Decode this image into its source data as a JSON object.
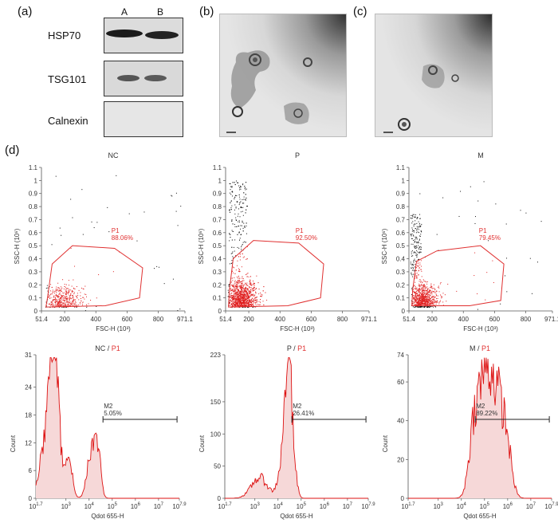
{
  "panel_a": {
    "letter": "(a)",
    "lanes": [
      "A",
      "B"
    ],
    "rows": [
      {
        "label": "HSP70"
      },
      {
        "label": "TSG101"
      },
      {
        "label": "Calnexin"
      }
    ]
  },
  "panel_b": {
    "letter": "(b)"
  },
  "panel_c": {
    "letter": "(c)"
  },
  "panel_d": {
    "letter": "(d)"
  },
  "colors": {
    "gate": "#e03030",
    "events_in": "#e02020",
    "events_out": "#111111",
    "hist_fill": "#f6d8d8",
    "hist_line": "#dd1111"
  },
  "chart_data": [
    {
      "type": "scatter",
      "title": "NC",
      "xlabel": "FSC-H (10³)",
      "ylabel": "SSC-H (10⁶)",
      "xticks": [
        "51.4",
        "200",
        "400",
        "600",
        "800",
        "971.1"
      ],
      "yticks": [
        "0",
        "0.1",
        "0.2",
        "0.3",
        "0.4",
        "0.5",
        "0.6",
        "0.7",
        "0.8",
        "0.9",
        "1",
        "1.1"
      ],
      "xlim": [
        51.4,
        971.1
      ],
      "ylim": [
        0,
        1.1
      ],
      "gate_name": "P1",
      "gate_percent": "88.06%",
      "gate_polygon": [
        [
          90,
          0.1
        ],
        [
          120,
          0.36
        ],
        [
          250,
          0.5
        ],
        [
          520,
          0.48
        ],
        [
          700,
          0.33
        ],
        [
          680,
          0.1
        ],
        [
          460,
          0.04
        ],
        [
          80,
          0.03
        ]
      ],
      "density": "low"
    },
    {
      "type": "scatter",
      "title": "P",
      "xlabel": "FSC-H (10³)",
      "ylabel": "SSC-H (10⁶)",
      "xticks": [
        "51.4",
        "200",
        "400",
        "600",
        "800",
        "971.1"
      ],
      "yticks": [
        "0",
        "0.1",
        "0.2",
        "0.3",
        "0.4",
        "0.5",
        "0.6",
        "0.7",
        "0.8",
        "0.9",
        "1",
        "1.1"
      ],
      "xlim": [
        51.4,
        971.1
      ],
      "ylim": [
        0,
        1.1
      ],
      "gate_name": "P1",
      "gate_percent": "92.50%",
      "gate_polygon": [
        [
          75,
          0.15
        ],
        [
          100,
          0.4
        ],
        [
          230,
          0.54
        ],
        [
          520,
          0.52
        ],
        [
          680,
          0.36
        ],
        [
          660,
          0.1
        ],
        [
          450,
          0.04
        ],
        [
          70,
          0.03
        ]
      ],
      "density": "high"
    },
    {
      "type": "scatter",
      "title": "M",
      "xlabel": "FSC-H (10³)",
      "ylabel": "SSC-H (10⁶)",
      "xticks": [
        "51.4",
        "200",
        "400",
        "600",
        "800",
        "971.1"
      ],
      "yticks": [
        "0",
        "0.1",
        "0.2",
        "0.3",
        "0.4",
        "0.5",
        "0.6",
        "0.7",
        "0.8",
        "0.9",
        "1",
        "1.1"
      ],
      "xlim": [
        51.4,
        971.1
      ],
      "ylim": [
        0,
        1.1
      ],
      "gate_name": "P1",
      "gate_percent": "79.45%",
      "gate_polygon": [
        [
          75,
          0.16
        ],
        [
          100,
          0.38
        ],
        [
          230,
          0.46
        ],
        [
          510,
          0.5
        ],
        [
          660,
          0.36
        ],
        [
          640,
          0.08
        ],
        [
          440,
          0.04
        ],
        [
          70,
          0.04
        ]
      ],
      "density": "medium"
    },
    {
      "type": "area",
      "title_main": "NC",
      "title_gate": "P1",
      "xlabel": "Qdot 655-H",
      "ylabel": "Count",
      "xticks": [
        "10^1.7",
        "10^3",
        "10^4",
        "10^5",
        "10^6",
        "10^7",
        "10^7.9"
      ],
      "yticks": [
        "0",
        "6",
        "12",
        "18",
        "24",
        "31"
      ],
      "ylim": [
        0,
        31
      ],
      "marker_name": "M2",
      "marker_percent": "5.05%",
      "marker_range": [
        4.6,
        7.8
      ],
      "peaks": [
        [
          2.5,
          29,
          0.18
        ],
        [
          2.2,
          14,
          0.3
        ],
        [
          3.1,
          10,
          0.15
        ],
        [
          4.1,
          11,
          0.18
        ],
        [
          4.4,
          9,
          0.12
        ]
      ]
    },
    {
      "type": "area",
      "title_main": "P",
      "title_gate": "P1",
      "xlabel": "Qdot 655-H",
      "ylabel": "Count",
      "xticks": [
        "10^1.7",
        "10^3",
        "10^4",
        "10^5",
        "10^6",
        "10^7",
        "10^7.9"
      ],
      "yticks": [
        "0",
        "50",
        "100",
        "150",
        "223"
      ],
      "ylim": [
        0,
        223
      ],
      "marker_name": "M2",
      "marker_percent": "26.41%",
      "marker_range": [
        4.6,
        7.8
      ],
      "peaks": [
        [
          3.2,
          32,
          0.35
        ],
        [
          4.45,
          215,
          0.13
        ],
        [
          4.2,
          60,
          0.18
        ],
        [
          4.7,
          40,
          0.12
        ]
      ]
    },
    {
      "type": "area",
      "title_main": "M",
      "title_gate": "P1",
      "xlabel": "Qdot 655-H",
      "ylabel": "Count",
      "xticks": [
        "10^1.7",
        "10^3",
        "10^4",
        "10^5",
        "10^6",
        "10^7",
        "10^7.9"
      ],
      "yticks": [
        "0",
        "20",
        "40",
        "60",
        "74"
      ],
      "ylim": [
        0,
        74
      ],
      "marker_name": "M2",
      "marker_percent": "89.22%",
      "marker_range": [
        4.6,
        7.8
      ],
      "peaks": [
        [
          5.0,
          60,
          0.33
        ],
        [
          5.6,
          42,
          0.3
        ],
        [
          4.5,
          22,
          0.2
        ],
        [
          6.0,
          15,
          0.2
        ]
      ]
    }
  ]
}
